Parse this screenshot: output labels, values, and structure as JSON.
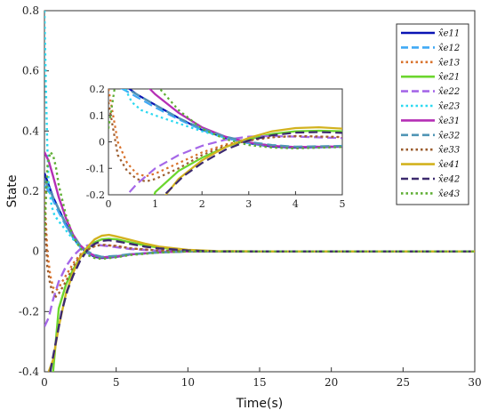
{
  "chart_data": {
    "type": "line",
    "title": "",
    "xlabel": "Time(s)",
    "ylabel": "State",
    "xlim": [
      0,
      30
    ],
    "ylim": [
      -0.4,
      0.8
    ],
    "xticks": [
      "0",
      "5",
      "10",
      "15",
      "20",
      "25",
      "30"
    ],
    "yticks": [
      "-0.4",
      "-0.2",
      "0",
      "0.2",
      "0.4",
      "0.6",
      "0.8"
    ],
    "grid": false,
    "legend_position": "top-right",
    "series": [
      {
        "name": "x̂e11",
        "color": "#0a14b4",
        "dash": "solid",
        "x": [
          0,
          0.3,
          0.6,
          1,
          1.5,
          2,
          2.5,
          3,
          3.5,
          4,
          5,
          6,
          8,
          10,
          15,
          20,
          30
        ],
        "y": [
          0.26,
          0.22,
          0.18,
          0.14,
          0.09,
          0.045,
          0.015,
          -0.005,
          -0.018,
          -0.022,
          -0.018,
          -0.01,
          -0.003,
          0.0,
          0,
          0,
          0
        ]
      },
      {
        "name": "x̂e12",
        "color": "#3fa9f5",
        "dash": "dashed",
        "x": [
          0,
          0.3,
          0.6,
          1,
          1.5,
          2,
          2.5,
          3,
          3.5,
          4,
          5,
          6,
          8,
          10,
          15,
          20,
          30
        ],
        "y": [
          0.22,
          0.2,
          0.17,
          0.13,
          0.085,
          0.045,
          0.015,
          -0.005,
          -0.015,
          -0.02,
          -0.016,
          -0.01,
          -0.003,
          0.0,
          0,
          0,
          0
        ]
      },
      {
        "name": "x̂e13",
        "color": "#d9722b",
        "dash": "dotted",
        "x": [
          0,
          0.2,
          0.4,
          0.6,
          0.8,
          1,
          1.5,
          2,
          2.5,
          3,
          3.5,
          4,
          5,
          6,
          8,
          10,
          15,
          20,
          30
        ],
        "y": [
          0.2,
          0.0,
          -0.08,
          -0.12,
          -0.13,
          -0.12,
          -0.08,
          -0.04,
          -0.01,
          0.008,
          0.018,
          0.022,
          0.018,
          0.01,
          0.003,
          0.0,
          0,
          0,
          0
        ]
      },
      {
        "name": "x̂e21",
        "color": "#6bd62e",
        "dash": "solid",
        "x": [
          0.6,
          1,
          1.5,
          2,
          2.5,
          3,
          3.5,
          4,
          4.5,
          5,
          6,
          7,
          8,
          10,
          12,
          15,
          20,
          30
        ],
        "y": [
          -0.4,
          -0.19,
          -0.11,
          -0.06,
          -0.02,
          0.01,
          0.03,
          0.04,
          0.042,
          0.04,
          0.03,
          0.02,
          0.012,
          0.004,
          0.0,
          0,
          0,
          0
        ]
      },
      {
        "name": "x̂e22",
        "color": "#a567e8",
        "dash": "dashed",
        "x": [
          0,
          0.3,
          0.6,
          1,
          1.5,
          2,
          2.5,
          3,
          3.5,
          4,
          5,
          6,
          8,
          10,
          15,
          20,
          30
        ],
        "y": [
          -0.25,
          -0.22,
          -0.16,
          -0.1,
          -0.05,
          -0.015,
          0.008,
          0.02,
          0.022,
          0.02,
          0.014,
          0.008,
          0.002,
          0.0,
          0,
          0,
          0
        ]
      },
      {
        "name": "x̂e23",
        "color": "#2bd9f0",
        "dash": "dotted",
        "x": [
          0,
          0.1,
          0.2,
          0.3,
          0.5,
          0.7,
          1,
          1.5,
          2,
          2.5,
          3,
          4,
          5,
          6,
          8,
          10,
          15,
          20,
          30
        ],
        "y": [
          0.8,
          0.55,
          0.35,
          0.22,
          0.15,
          0.12,
          0.1,
          0.07,
          0.04,
          0.015,
          -0.005,
          -0.02,
          -0.018,
          -0.01,
          -0.003,
          0.0,
          0,
          0,
          0
        ]
      },
      {
        "name": "x̂e31",
        "color": "#b52eb5",
        "dash": "solid",
        "x": [
          0,
          0.3,
          0.6,
          1,
          1.5,
          2,
          2.5,
          3,
          3.5,
          4,
          5,
          6,
          8,
          10,
          15,
          20,
          30
        ],
        "y": [
          0.33,
          0.3,
          0.25,
          0.18,
          0.11,
          0.055,
          0.02,
          -0.002,
          -0.015,
          -0.02,
          -0.017,
          -0.01,
          -0.003,
          0.0,
          0,
          0,
          0
        ]
      },
      {
        "name": "x̂e32",
        "color": "#4f95b5",
        "dash": "dashed",
        "x": [
          0,
          0.3,
          0.6,
          1,
          1.5,
          2,
          2.5,
          3,
          3.5,
          4,
          5,
          6,
          8,
          10,
          15,
          20,
          30
        ],
        "y": [
          0.24,
          0.21,
          0.18,
          0.14,
          0.09,
          0.05,
          0.02,
          0.0,
          -0.012,
          -0.018,
          -0.015,
          -0.009,
          -0.003,
          0.0,
          0,
          0,
          0
        ]
      },
      {
        "name": "x̂e33",
        "color": "#9b5c2e",
        "dash": "dotted",
        "x": [
          0,
          0.2,
          0.4,
          0.6,
          0.8,
          1,
          1.5,
          2,
          2.5,
          3,
          3.5,
          4,
          5,
          6,
          8,
          10,
          15,
          20,
          30
        ],
        "y": [
          0.15,
          -0.05,
          -0.11,
          -0.14,
          -0.15,
          -0.14,
          -0.1,
          -0.05,
          -0.015,
          0.005,
          0.017,
          0.022,
          0.018,
          0.01,
          0.003,
          0.0,
          0,
          0,
          0
        ]
      },
      {
        "name": "x̂e41",
        "color": "#d2b21e",
        "dash": "solid",
        "x": [
          0.3,
          0.6,
          1,
          1.5,
          2,
          2.5,
          3,
          3.5,
          4,
          4.5,
          5,
          6,
          7,
          8,
          10,
          12,
          15,
          20,
          30
        ],
        "y": [
          -0.4,
          -0.36,
          -0.25,
          -0.14,
          -0.07,
          -0.02,
          0.015,
          0.04,
          0.052,
          0.055,
          0.05,
          0.038,
          0.026,
          0.016,
          0.005,
          0.001,
          0,
          0,
          0
        ]
      },
      {
        "name": "x̂e42",
        "color": "#3c2a6e",
        "dash": "dashed",
        "x": [
          0.4,
          0.8,
          1.2,
          1.6,
          2,
          2.5,
          3,
          3.5,
          4,
          4.5,
          5,
          6,
          7,
          8,
          10,
          12,
          15,
          20,
          30
        ],
        "y": [
          -0.4,
          -0.3,
          -0.2,
          -0.13,
          -0.08,
          -0.03,
          0.005,
          0.025,
          0.035,
          0.037,
          0.034,
          0.025,
          0.016,
          0.01,
          0.003,
          0.0,
          0,
          0,
          0
        ]
      },
      {
        "name": "x̂e43",
        "color": "#5fae34",
        "dash": "dotted",
        "x": [
          0,
          0.2,
          0.4,
          0.6,
          0.8,
          1,
          1.5,
          2,
          2.5,
          3,
          3.5,
          4,
          5,
          6,
          8,
          10,
          15,
          20,
          30
        ],
        "y": [
          0.05,
          0.28,
          0.33,
          0.32,
          0.28,
          0.22,
          0.12,
          0.05,
          0.01,
          -0.012,
          -0.022,
          -0.025,
          -0.02,
          -0.012,
          -0.004,
          0.0,
          0,
          0,
          0
        ]
      }
    ],
    "inset": {
      "xlim": [
        0,
        5
      ],
      "ylim": [
        -0.2,
        0.2
      ],
      "xticks": [
        "0",
        "1",
        "2",
        "3",
        "4",
        "5"
      ],
      "yticks": [
        "-0.2",
        "-0.1",
        "0",
        "0.1",
        "0.2"
      ]
    }
  }
}
